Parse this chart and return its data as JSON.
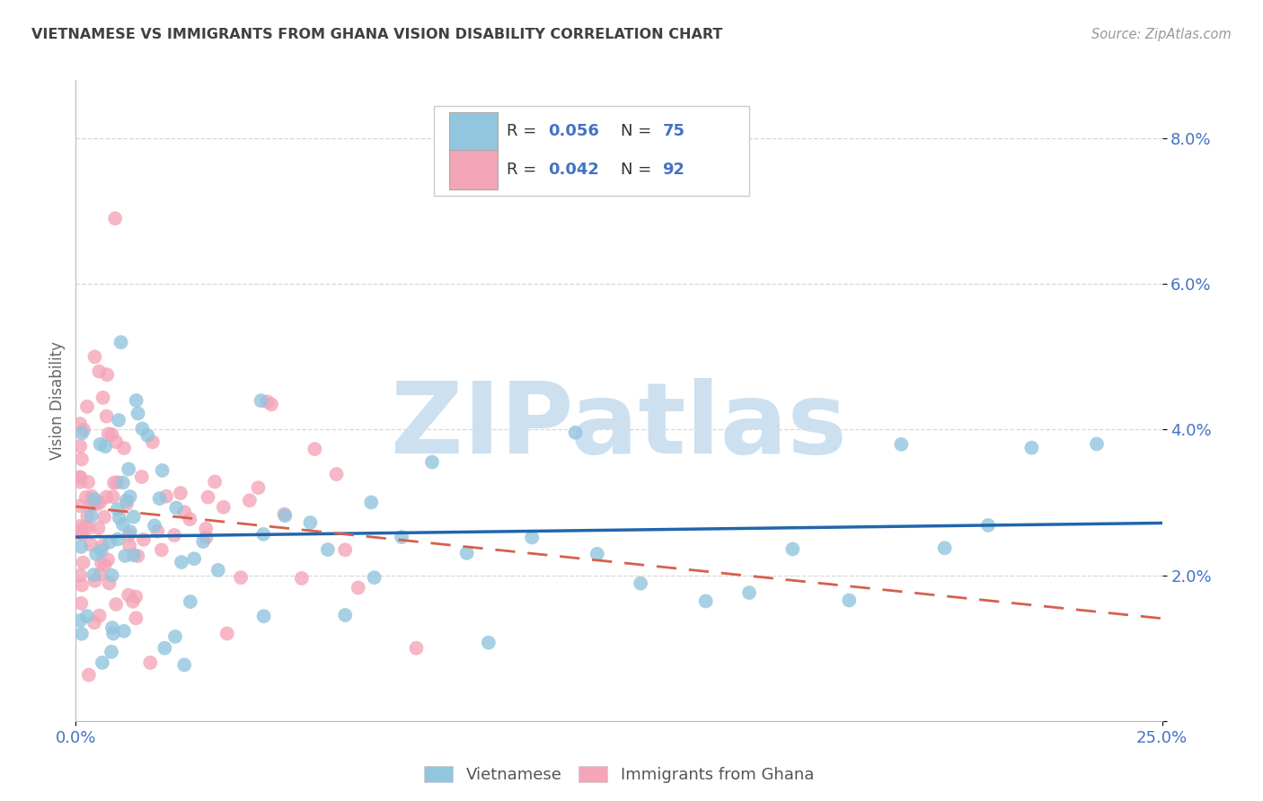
{
  "title": "VIETNAMESE VS IMMIGRANTS FROM GHANA VISION DISABILITY CORRELATION CHART",
  "source": "Source: ZipAtlas.com",
  "ylabel": "Vision Disability",
  "watermark": "ZIPatlas",
  "xlim": [
    0.0,
    0.25
  ],
  "ylim": [
    0.0,
    0.088
  ],
  "yticks": [
    0.0,
    0.02,
    0.04,
    0.06,
    0.08
  ],
  "ytick_labels": [
    "",
    "2.0%",
    "4.0%",
    "6.0%",
    "8.0%"
  ],
  "xtick_positions": [
    0.0,
    0.25
  ],
  "xtick_labels": [
    "0.0%",
    "25.0%"
  ],
  "blue_color": "#92c5de",
  "pink_color": "#f4a5b8",
  "blue_line_color": "#2166ac",
  "pink_line_color": "#d6604d",
  "title_color": "#404040",
  "axis_label_color": "#4472C4",
  "grid_color": "#d8d8d8",
  "watermark_color": "#cce0f0",
  "r_blue": "0.056",
  "n_blue": "75",
  "r_pink": "0.042",
  "n_pink": "92"
}
